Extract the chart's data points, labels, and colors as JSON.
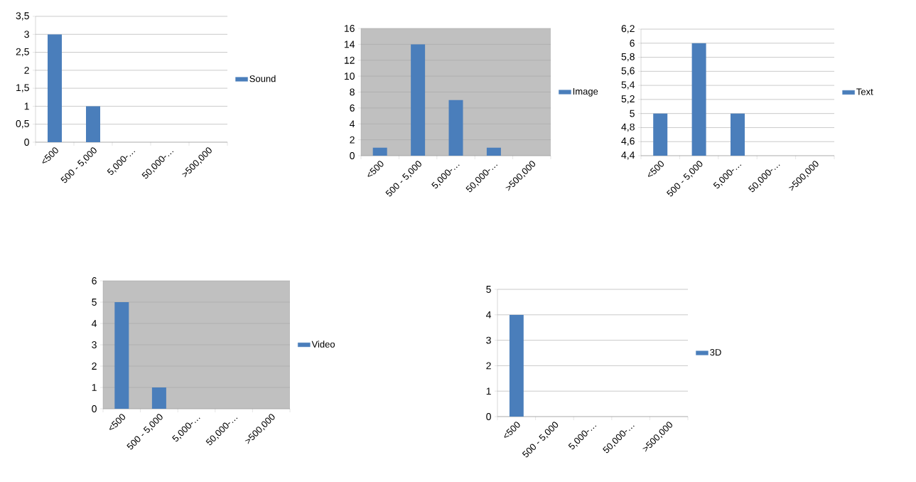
{
  "chart_data": [
    {
      "type": "bar",
      "categories": [
        "<500",
        "500 - 5,000",
        "5,000-…",
        "50,000-…",
        ">500,000"
      ],
      "series": [
        {
          "name": "Sound",
          "color": "#4a7ebb",
          "values": [
            3,
            1,
            0,
            0,
            0
          ]
        }
      ],
      "ylim": [
        0,
        3.5
      ],
      "yticks": [
        0,
        {
          "value": 0.5,
          "label": "0,5"
        },
        1,
        {
          "value": 1.5,
          "label": "1,5"
        },
        2,
        {
          "value": 2.5,
          "label": "2,5"
        },
        3,
        {
          "value": 3.5,
          "label": "3,5"
        }
      ],
      "grid": "y",
      "legend": "right"
    },
    {
      "type": "bar",
      "categories": [
        "<500",
        "500 - 5,000",
        "5,000-…",
        "50,000-…",
        ">500,000"
      ],
      "series": [
        {
          "name": "Image",
          "color": "#4a7ebb",
          "values": [
            1,
            14,
            7,
            1,
            0
          ]
        }
      ],
      "ylim": [
        0,
        16
      ],
      "yticks": [
        0,
        2,
        4,
        6,
        8,
        10,
        12,
        14,
        16
      ],
      "grid": "y",
      "legend": "right"
    },
    {
      "type": "bar",
      "categories": [
        "<500",
        "500 - 5,000",
        "5,000-…",
        "50,000-…",
        ">500,000"
      ],
      "series": [
        {
          "name": "Text",
          "color": "#4a7ebb",
          "values": [
            5,
            6,
            5,
            null,
            null
          ]
        }
      ],
      "ylim": [
        4.4,
        6.2
      ],
      "yticks": [
        {
          "value": 4.4,
          "label": "4,4"
        },
        {
          "value": 4.6,
          "label": "4,6"
        },
        {
          "value": 4.8,
          "label": "4,8"
        },
        5,
        {
          "value": 5.2,
          "label": "5,2"
        },
        {
          "value": 5.4,
          "label": "5,4"
        },
        {
          "value": 5.6,
          "label": "5,6"
        },
        {
          "value": 5.8,
          "label": "5,8"
        },
        6,
        {
          "value": 6.2,
          "label": "6,2"
        }
      ],
      "grid": "y",
      "legend": "right"
    },
    {
      "type": "bar",
      "categories": [
        "<500",
        "500 - 5,000",
        "5,000-…",
        "50,000-…",
        ">500,000"
      ],
      "series": [
        {
          "name": "Video",
          "color": "#4a7ebb",
          "values": [
            5,
            1,
            0,
            0,
            0
          ]
        }
      ],
      "ylim": [
        0,
        6
      ],
      "yticks": [
        0,
        1,
        2,
        3,
        4,
        5,
        6
      ],
      "grid": "y",
      "legend": "right"
    },
    {
      "type": "bar",
      "categories": [
        "<500",
        "500 - 5,000",
        "5,000-…",
        "50,000-…",
        ">500,000"
      ],
      "series": [
        {
          "name": "3D",
          "color": "#4a7ebb",
          "values": [
            4,
            0,
            0,
            0,
            0
          ]
        }
      ],
      "ylim": [
        0,
        5
      ],
      "yticks": [
        0,
        1,
        2,
        3,
        4,
        5
      ],
      "grid": "y",
      "legend": "right"
    }
  ]
}
